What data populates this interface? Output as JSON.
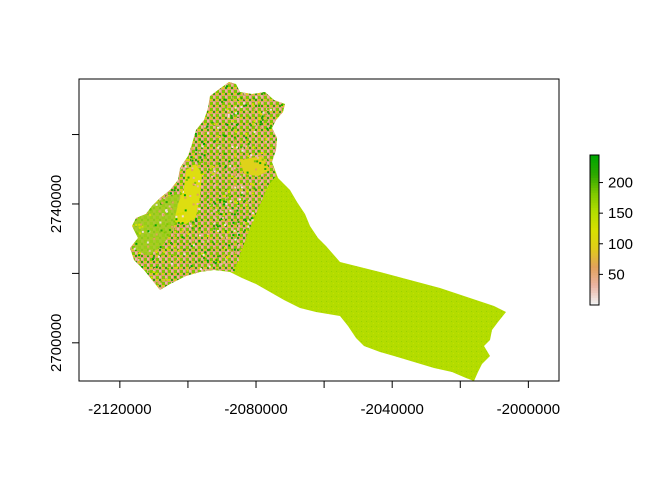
{
  "chart_data": {
    "type": "heatmap",
    "title": "",
    "xlabel": "",
    "ylabel": "",
    "xlim": [
      -2132000,
      -1991000
    ],
    "ylim": [
      2689000,
      2776000
    ],
    "x_ticks": [
      -2120000,
      -2100000,
      -2080000,
      -2060000,
      -2040000,
      -2020000,
      -2000000
    ],
    "x_tick_labels": [
      "-2120000",
      "",
      "-2080000",
      "",
      "-2040000",
      "",
      "-2000000"
    ],
    "y_ticks": [
      2700000,
      2720000,
      2740000,
      2760000
    ],
    "y_tick_labels": [
      "2700000",
      "",
      "2740000",
      ""
    ],
    "grid": false,
    "legend": {
      "placement": "right",
      "range": [
        0,
        245
      ],
      "ticks": [
        50,
        100,
        150,
        200
      ],
      "tick_labels": [
        "50",
        "100",
        "150",
        "200"
      ],
      "colors": [
        "#f2f2f2",
        "#ebb4a3",
        "#e2a15c",
        "#e0cc1a",
        "#d8e000",
        "#b4dd00",
        "#7ec800",
        "#2ea800",
        "#00a600"
      ]
    },
    "region": {
      "dominant_values": {
        "southeast": 135,
        "north_mix": [
          20,
          90,
          160,
          215
        ],
        "yellow_patch": 110
      }
    }
  }
}
